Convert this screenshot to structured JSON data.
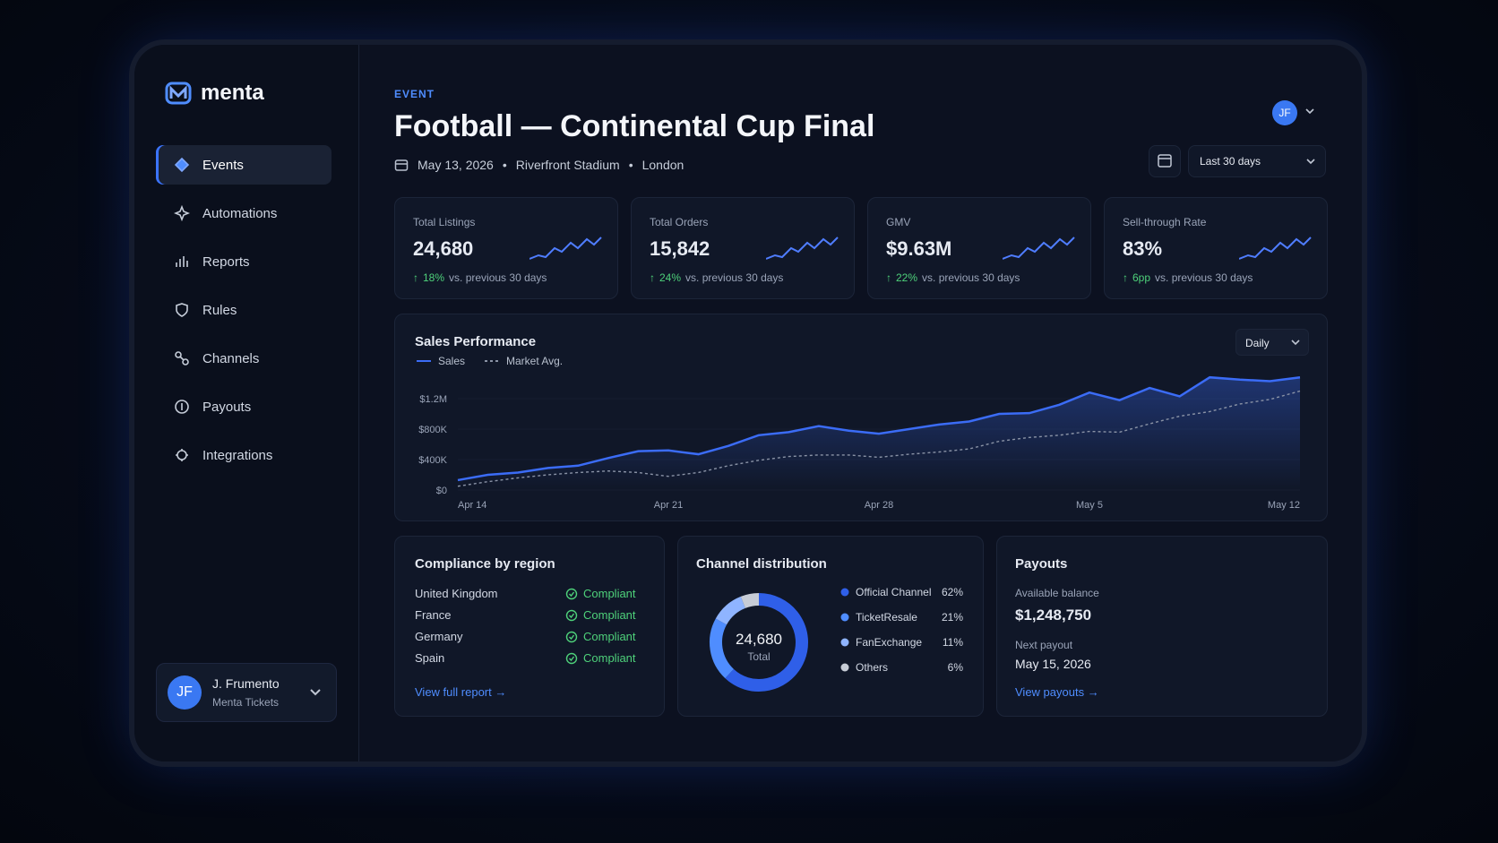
{
  "brand": "menta",
  "nav": [
    "Events",
    "Automations",
    "Reports",
    "Rules",
    "Channels",
    "Payouts",
    "Integrations"
  ],
  "user": {
    "initials": "JF",
    "name": "J. Frumento",
    "org": "Menta Tickets"
  },
  "header": {
    "eyebrow": "EVENT",
    "title": "Football — Continental Cup Final",
    "date": "May 13, 2026",
    "venue": "Riverfront Stadium",
    "city": "London",
    "avatar": "JF",
    "range": "Last 30 days"
  },
  "kpis": [
    {
      "label": "Total Listings",
      "value": "24,680",
      "change": "18%",
      "note": "vs. previous 30 days"
    },
    {
      "label": "Total Orders",
      "value": "15,842",
      "change": "24%",
      "note": "vs. previous 30 days"
    },
    {
      "label": "GMV",
      "value": "$9.63M",
      "change": "22%",
      "note": "vs. previous 30 days"
    },
    {
      "label": "Sell-through Rate",
      "value": "83%",
      "change": "6pp",
      "note": "vs. previous 30 days"
    }
  ],
  "sales_chart": {
    "type": "line",
    "title": "Sales Performance",
    "interval": "Daily",
    "categories": [
      "Apr 14",
      null,
      null,
      null,
      null,
      null,
      null,
      "Apr 21",
      null,
      null,
      null,
      null,
      null,
      null,
      "Apr 28",
      null,
      null,
      null,
      null,
      null,
      null,
      "May 5",
      null,
      null,
      null,
      null,
      null,
      null,
      "May 12"
    ],
    "series": [
      {
        "name": "Sales",
        "color": "#3b6cf6",
        "values": [
          130000,
          200000,
          230000,
          290000,
          320000,
          420000,
          510000,
          520000,
          470000,
          580000,
          720000,
          760000,
          840000,
          780000,
          740000,
          800000,
          860000,
          900000,
          1000000,
          1010000,
          1120000,
          1280000,
          1180000,
          1340000,
          1230000,
          1480000,
          1450000,
          1430000,
          1480000
        ]
      },
      {
        "name": "Market Avg.",
        "color": "#8a93a6",
        "values": [
          50000,
          110000,
          160000,
          200000,
          230000,
          250000,
          230000,
          180000,
          230000,
          320000,
          390000,
          440000,
          460000,
          460000,
          430000,
          470000,
          500000,
          540000,
          640000,
          690000,
          720000,
          770000,
          760000,
          870000,
          970000,
          1030000,
          1130000,
          1190000,
          1300000
        ]
      }
    ],
    "ylim": [
      0,
      1600000
    ],
    "yticks": [
      {
        "value": 0,
        "label": "$0"
      },
      {
        "value": 400000,
        "label": "$400K"
      },
      {
        "value": 800000,
        "label": "$800K"
      },
      {
        "value": 1200000,
        "label": "$1.2M"
      }
    ]
  },
  "compliance": {
    "title": "Compliance by region",
    "rows": [
      [
        "United Kingdom",
        "Compliant"
      ],
      [
        "France",
        "Compliant"
      ],
      [
        "Germany",
        "Compliant"
      ],
      [
        "Spain",
        "Compliant"
      ]
    ],
    "link": "View full report"
  },
  "channel_distribution": {
    "type": "pie",
    "title": "Channel distribution",
    "center_value": "24,680",
    "center_label": "Total",
    "categories": [
      "Official Channel",
      "TicketResale",
      "FanExchange",
      "Others"
    ],
    "values": [
      62,
      21,
      11,
      6
    ],
    "value_labels": [
      "62%",
      "21%",
      "11%",
      "6%"
    ],
    "colors": [
      "#2f5fe8",
      "#4f8dff",
      "#8fb4ff",
      "#c7ccd6"
    ]
  },
  "payouts": {
    "title": "Payouts",
    "balance_label": "Available balance",
    "balance": "$1,248,750",
    "next_label": "Next payout",
    "next_date": "May 15, 2026",
    "link": "View payouts"
  }
}
